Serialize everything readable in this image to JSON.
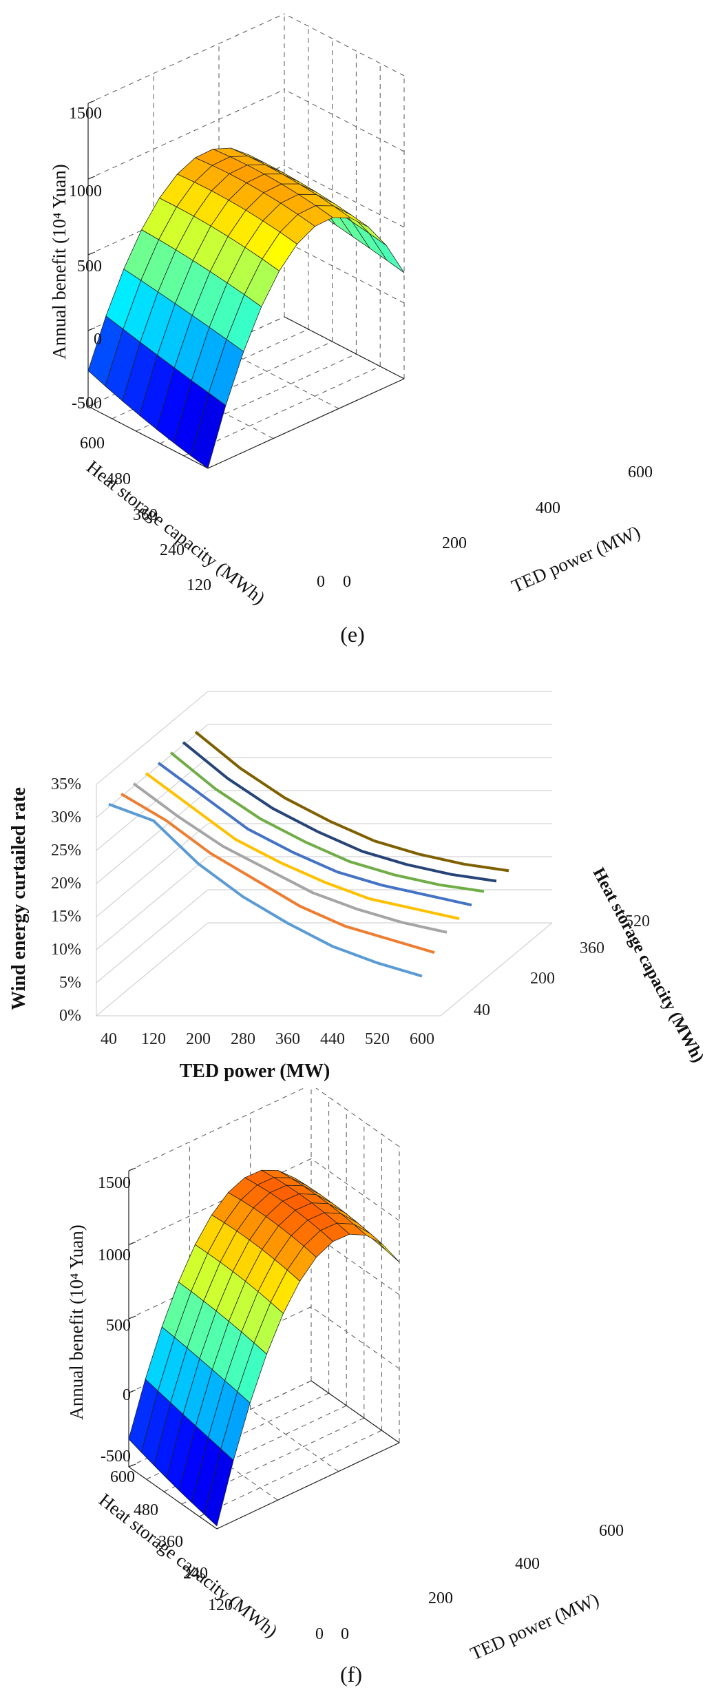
{
  "chart_data": [
    {
      "type": "surface",
      "panel": "e",
      "caption": "(e)",
      "zlabel": "Annual benefit (10⁴ Yuan)",
      "xlabel": "TED power (MW)",
      "ylabel": "Heat storage capacity (MWh)",
      "z_ticks": [
        "-500",
        "0",
        "500",
        "1000",
        "1500"
      ],
      "x_ticks": [
        "0",
        "200",
        "400",
        "600"
      ],
      "y_ticks": [
        "600",
        "480",
        "360",
        "240",
        "120",
        "0"
      ],
      "zlim": [
        -500,
        1500
      ],
      "xlim": [
        0,
        600
      ],
      "ylim": [
        0,
        600
      ],
      "colormap": "jet",
      "description_values": {
        "peak": 1250,
        "min_corner": -440,
        "high_power_edge": 420
      }
    },
    {
      "type": "line",
      "panel": "middle",
      "xlabel": "TED power (MW)",
      "ylabel": "Wind energy curtailed rate",
      "zlabel": "Heat storage capacity (MWh)",
      "categories": [
        "40",
        "120",
        "200",
        "280",
        "360",
        "440",
        "520",
        "600"
      ],
      "y_ticks": [
        "0%",
        "5%",
        "10%",
        "15%",
        "20%",
        "25%",
        "30%",
        "35%"
      ],
      "z_ticks": [
        "40",
        "200",
        "360",
        "520"
      ],
      "ylim": [
        0,
        35
      ],
      "series": [
        {
          "name": "40 MWh",
          "color": "#5b9bd5",
          "values": [
            32.0,
            29.5,
            23.0,
            18.0,
            14.0,
            10.5,
            8.0,
            6.0
          ]
        },
        {
          "name": "120 MWh",
          "color": "#ed7d31",
          "values": [
            32.0,
            28.0,
            23.0,
            19.0,
            15.0,
            12.0,
            10.0,
            8.0
          ]
        },
        {
          "name": "200 MWh",
          "color": "#a5a5a5",
          "values": [
            32.0,
            27.0,
            22.5,
            19.0,
            15.5,
            13.0,
            11.0,
            9.5
          ]
        },
        {
          "name": "280 MWh",
          "color": "#ffc000",
          "values": [
            32.0,
            27.0,
            22.0,
            18.5,
            15.5,
            13.0,
            11.5,
            10.0
          ]
        },
        {
          "name": "360 MWh",
          "color": "#4472c4",
          "values": [
            32.0,
            27.0,
            22.0,
            18.5,
            15.5,
            13.5,
            12.0,
            10.5
          ]
        },
        {
          "name": "440 MWh",
          "color": "#70ad47",
          "values": [
            32.0,
            26.5,
            22.0,
            18.5,
            15.5,
            13.5,
            12.0,
            11.0
          ]
        },
        {
          "name": "520 MWh",
          "color": "#264478",
          "values": [
            32.0,
            26.5,
            22.0,
            18.5,
            15.5,
            13.5,
            12.0,
            11.0
          ]
        },
        {
          "name": "600 MWh",
          "color": "#7f6000",
          "values": [
            32.0,
            26.5,
            22.0,
            18.5,
            15.5,
            13.5,
            12.0,
            11.0
          ]
        }
      ]
    },
    {
      "type": "surface",
      "panel": "f",
      "caption": "(f)",
      "zlabel": "Annual benefit (10⁴ Yuan)",
      "xlabel": "TED power (MW)",
      "ylabel": "Heat storage capacity (MWh)",
      "z_ticks": [
        "-500",
        "0",
        "500",
        "1000",
        "1500"
      ],
      "x_ticks": [
        "0",
        "200",
        "400",
        "600"
      ],
      "y_ticks": [
        "600",
        "480",
        "360",
        "240",
        "120",
        "0"
      ],
      "zlim": [
        -500,
        1500
      ],
      "xlim": [
        0,
        600
      ],
      "ylim": [
        0,
        600
      ],
      "colormap": "jet",
      "description_values": {
        "peak": 1420,
        "min_corner": -440,
        "high_power_edge": 650
      }
    }
  ]
}
